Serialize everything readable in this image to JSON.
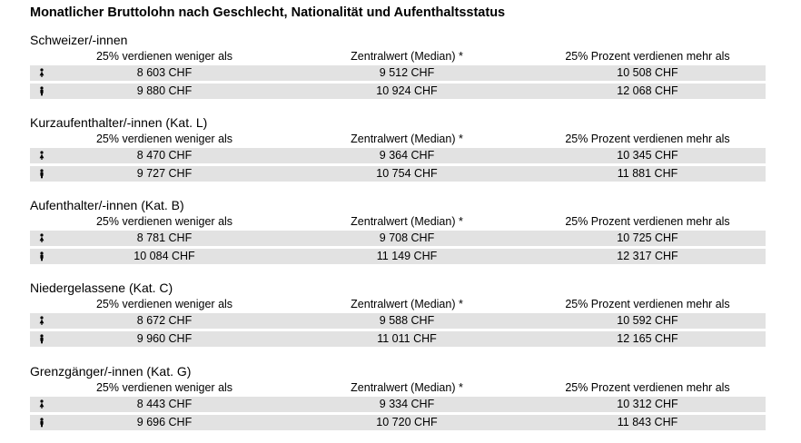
{
  "title": "Monatlicher Bruttolohn nach Geschlecht, Nationalität und Aufenthaltsstatus",
  "columns": [
    "25% verdienen weniger als",
    "Zentralwert (Median) *",
    "25% Prozent verdienen mehr als"
  ],
  "sections": [
    {
      "title": "Schweizer/-innen",
      "rows": [
        {
          "icon": "female-icon",
          "values": [
            "8 603 CHF",
            "9 512 CHF",
            "10 508 CHF"
          ]
        },
        {
          "icon": "male-icon",
          "values": [
            "9 880 CHF",
            "10 924 CHF",
            "12 068 CHF"
          ]
        }
      ]
    },
    {
      "title": "Kurzaufenthalter/-innen (Kat. L)",
      "rows": [
        {
          "icon": "female-icon",
          "values": [
            "8 470 CHF",
            "9 364 CHF",
            "10 345 CHF"
          ]
        },
        {
          "icon": "male-icon",
          "values": [
            "9 727 CHF",
            "10 754 CHF",
            "11 881 CHF"
          ]
        }
      ]
    },
    {
      "title": "Aufenthalter/-innen (Kat. B)",
      "rows": [
        {
          "icon": "female-icon",
          "values": [
            "8 781 CHF",
            "9 708 CHF",
            "10 725 CHF"
          ]
        },
        {
          "icon": "male-icon",
          "values": [
            "10 084 CHF",
            "11 149 CHF",
            "12 317 CHF"
          ]
        }
      ]
    },
    {
      "title": "Niedergelassene (Kat. C)",
      "rows": [
        {
          "icon": "female-icon",
          "values": [
            "8 672 CHF",
            "9 588 CHF",
            "10 592 CHF"
          ]
        },
        {
          "icon": "male-icon",
          "values": [
            "9 960 CHF",
            "11 011 CHF",
            "12 165 CHF"
          ]
        }
      ]
    },
    {
      "title": "Grenzgänger/-innen (Kat. G)",
      "rows": [
        {
          "icon": "female-icon",
          "values": [
            "8 443 CHF",
            "9 334 CHF",
            "10 312 CHF"
          ]
        },
        {
          "icon": "male-icon",
          "values": [
            "9 696 CHF",
            "10 720 CHF",
            "11 843 CHF"
          ]
        }
      ]
    }
  ]
}
